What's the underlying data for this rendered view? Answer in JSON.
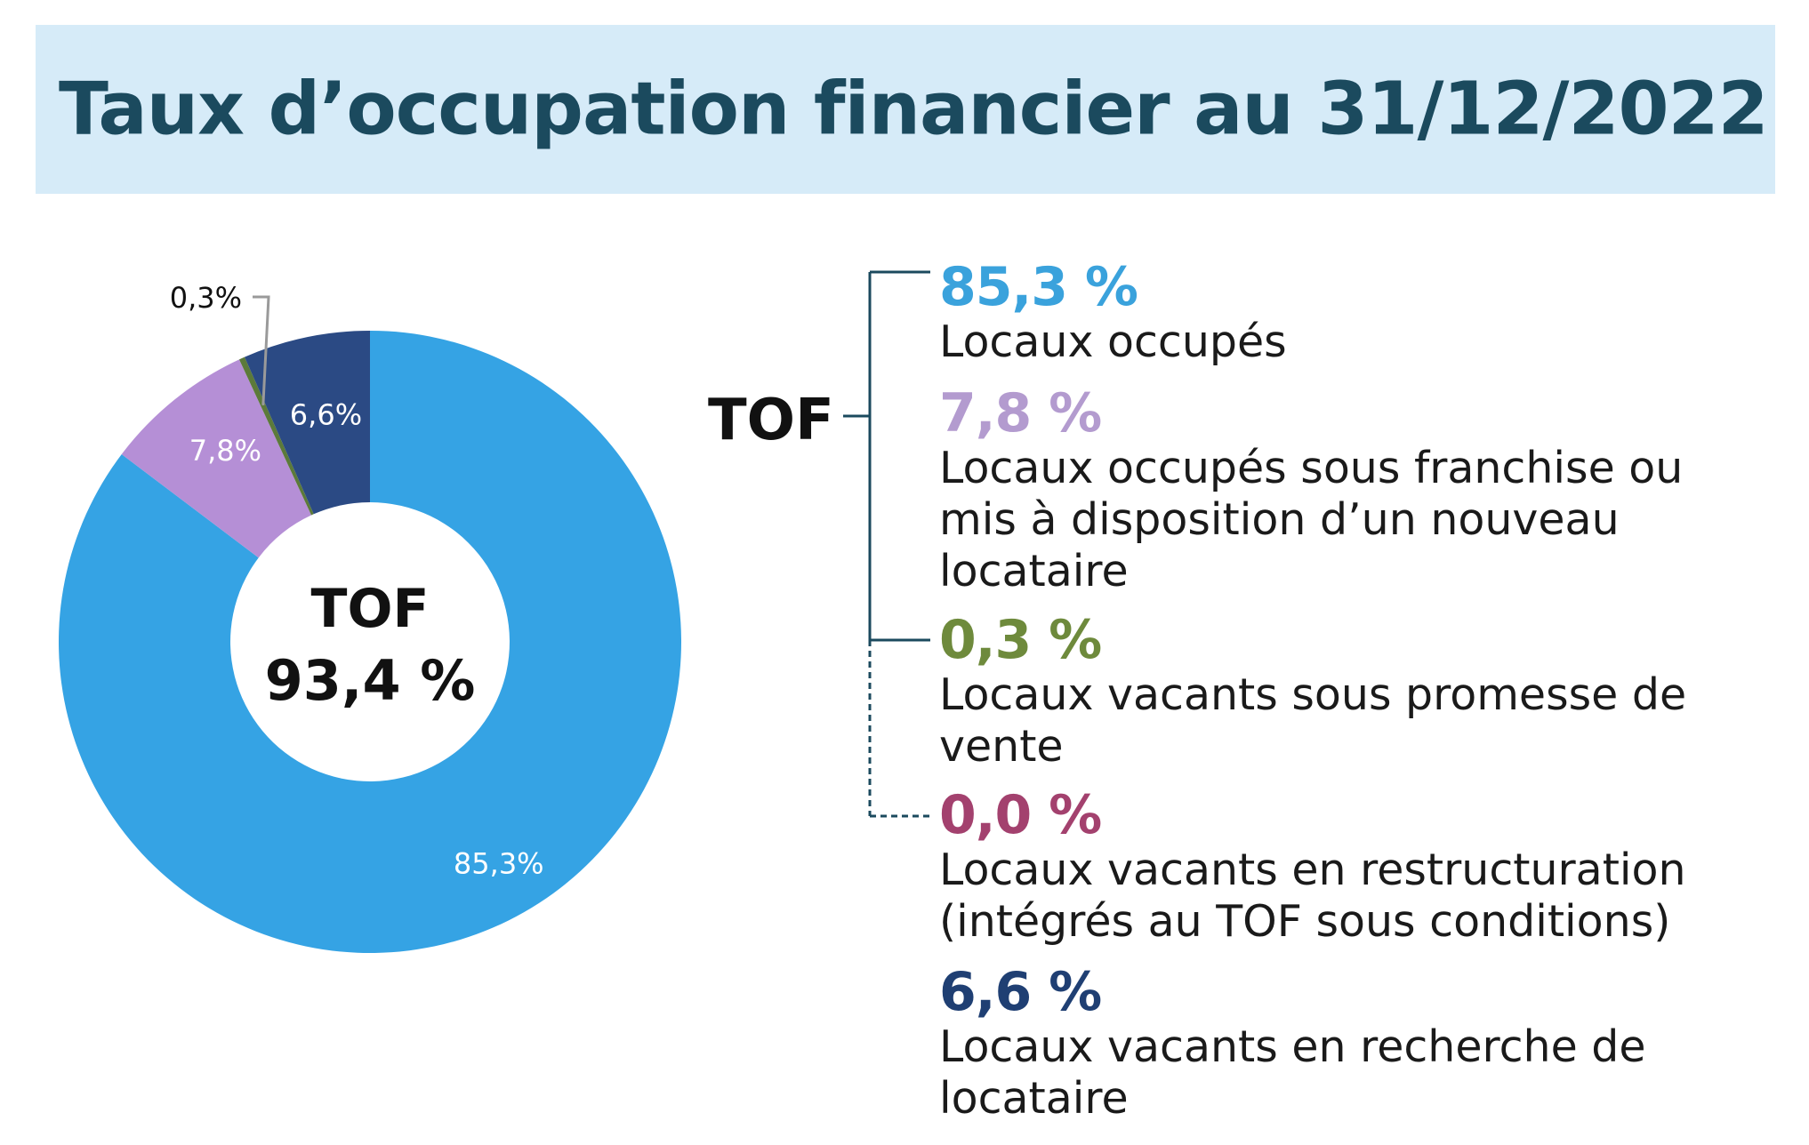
{
  "title": "Taux d’occupation financier au 31/12/2022",
  "chart_data": {
    "type": "pie",
    "variant": "donut",
    "categories": [
      "Locaux occupés",
      "Locaux occupés sous franchise ou mis à disposition d’un nouveau locataire",
      "Locaux vacants sous promesse de vente",
      "Locaux vacants en restructuration (intégrés au TOF sous conditions)",
      "Locaux vacants en recherche de locataire"
    ],
    "values": [
      85.3,
      7.8,
      0.3,
      0.0,
      6.6
    ],
    "slice_labels": [
      "85,3%",
      "7,8%",
      "0,3%",
      "",
      "6,6%"
    ],
    "colors": [
      "#35a3e4",
      "#b58fd6",
      "#5c7a3a",
      "#a3416e",
      "#2b4a84"
    ],
    "center_label": {
      "line1": "TOF",
      "line2": "93,4 %"
    }
  },
  "legend": {
    "bracket_label": "TOF",
    "items": [
      {
        "value": "85,3 %",
        "color": "#3aa2dc",
        "label_lines": [
          "Locaux occupés"
        ]
      },
      {
        "value": "7,8 %",
        "color": "#b39bcf",
        "label_lines": [
          "Locaux occupés sous franchise ou",
          "mis à disposition d’un nouveau",
          "locataire"
        ]
      },
      {
        "value": "0,3 %",
        "color": "#6e8a3c",
        "label_lines": [
          "Locaux vacants sous promesse de",
          "vente"
        ]
      },
      {
        "value": "0,0 %",
        "color": "#a3416e",
        "label_lines": [
          "Locaux vacants en restructuration",
          "(intégrés au TOF sous conditions)"
        ]
      },
      {
        "value": "6,6 %",
        "color": "#1f3f73",
        "label_lines": [
          "Locaux vacants en recherche de",
          "locataire"
        ]
      }
    ]
  }
}
